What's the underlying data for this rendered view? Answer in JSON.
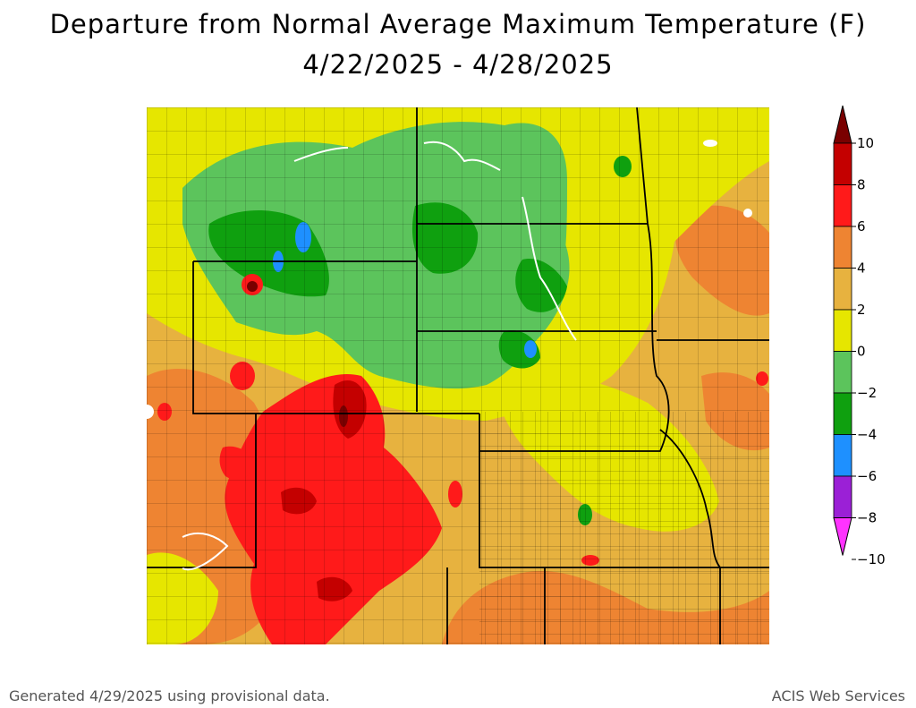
{
  "title": "Departure from Normal Average Maximum Temperature (F)",
  "date_range": "4/22/2025 - 4/28/2025",
  "footer": {
    "generated": "Generated 4/29/2025 using provisional data.",
    "credit": "ACIS Web Services"
  },
  "legend": {
    "labels": [
      "10",
      "8",
      "6",
      "4",
      "2",
      "0",
      "-2",
      "-4",
      "-6",
      "-8",
      "-10"
    ],
    "bins": [
      {
        "color": "#7a0000"
      },
      {
        "color": "#c40000"
      },
      {
        "color": "#ff1a1a"
      },
      {
        "color": "#ee8432"
      },
      {
        "color": "#e7b23f"
      },
      {
        "color": "#e6e600"
      },
      {
        "color": "#5cc45c"
      },
      {
        "color": "#0fa00f"
      },
      {
        "color": "#1e90ff"
      },
      {
        "color": "#9b20d6"
      },
      {
        "color": "#ff33ff"
      }
    ]
  }
}
